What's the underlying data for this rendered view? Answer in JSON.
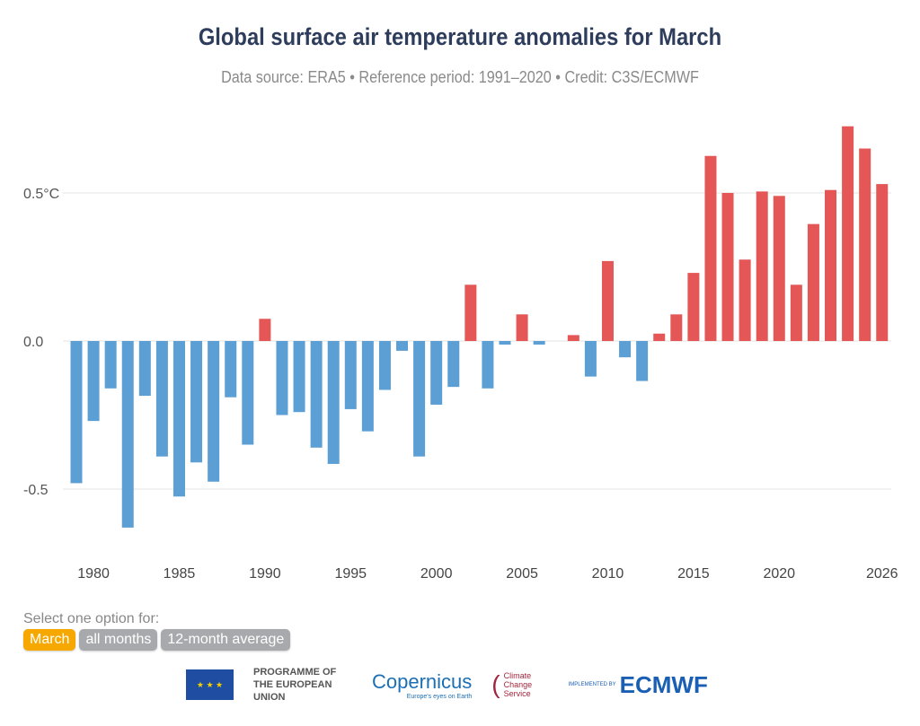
{
  "chart_data": {
    "type": "bar",
    "title": "Global surface air temperature anomalies for March",
    "subtitle": "Data source: ERA5 • Reference period: 1991–2020 • Credit: C3S/ECMWF",
    "xlabel": "",
    "ylabel": "",
    "ylim": [
      -0.72,
      0.8
    ],
    "y_ticks": [
      {
        "value": 0.5,
        "label": "0.5°C"
      },
      {
        "value": 0,
        "label": "0.0"
      },
      {
        "value": -0.5,
        "label": "-0.5"
      }
    ],
    "x_ticks": [
      1980,
      1985,
      1990,
      1995,
      2000,
      2005,
      2010,
      2015,
      2020,
      2026
    ],
    "grid": true,
    "colors": {
      "positive": "#e45756",
      "negative": "#5b9fd4"
    },
    "categories": [
      1979,
      1980,
      1981,
      1982,
      1983,
      1984,
      1985,
      1986,
      1987,
      1988,
      1989,
      1990,
      1991,
      1992,
      1993,
      1994,
      1995,
      1996,
      1997,
      1998,
      1999,
      2000,
      2001,
      2002,
      2003,
      2004,
      2005,
      2006,
      2007,
      2008,
      2009,
      2010,
      2011,
      2012,
      2013,
      2014,
      2015,
      2016,
      2017,
      2018,
      2019,
      2020,
      2021,
      2022,
      2023,
      2024,
      2025,
      2026
    ],
    "values": [
      -0.48,
      -0.27,
      -0.16,
      -0.63,
      -0.185,
      -0.39,
      -0.525,
      -0.41,
      -0.475,
      -0.19,
      -0.35,
      0.075,
      -0.25,
      -0.24,
      -0.36,
      -0.415,
      -0.23,
      -0.305,
      -0.165,
      -0.033,
      -0.39,
      -0.215,
      -0.155,
      0.19,
      -0.16,
      -0.012,
      0.09,
      -0.012,
      0.0,
      0.02,
      -0.12,
      0.27,
      -0.055,
      -0.135,
      0.025,
      0.09,
      0.23,
      0.625,
      0.5,
      0.275,
      0.505,
      0.49,
      0.19,
      0.395,
      0.51,
      0.725,
      0.65,
      0.53
    ]
  },
  "selector": {
    "label": "Select one option for:",
    "options": [
      "March",
      "all months",
      "12-month average"
    ],
    "selected": "March"
  },
  "logos": {
    "eu": "PROGRAMME OF THE EUROPEAN UNION",
    "copernicus": "opernicus",
    "copernicus_tag": "Europe's eyes on Earth",
    "c3s": "Climate Change Service",
    "implemented": "IMPLEMENTED BY",
    "ecmwf": "ECMWF"
  }
}
